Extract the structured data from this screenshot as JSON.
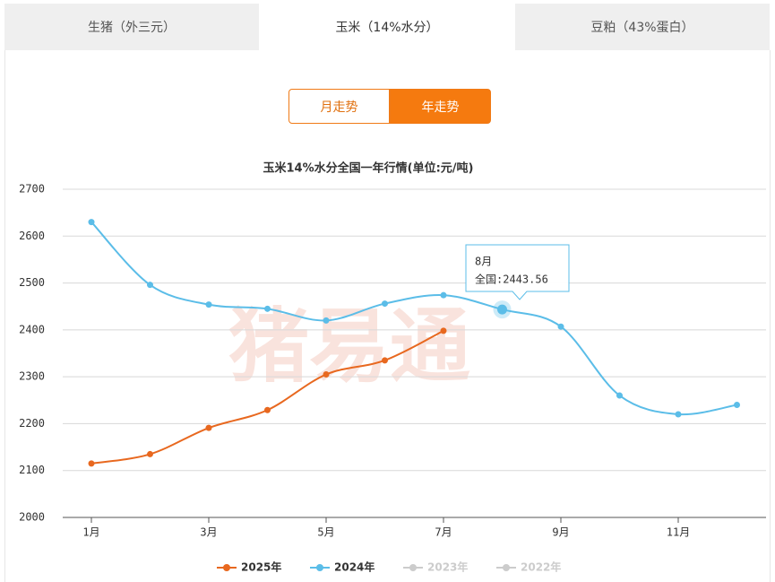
{
  "tabs": [
    "生猪（外三元）",
    "玉米（14%水分）",
    "豆粕（43%蛋白）"
  ],
  "buttons": [
    "月走势",
    "年走势"
  ],
  "watermark": "猪易通",
  "tooltip": {
    "title": "8月",
    "text": "全国:2443.56"
  },
  "chart_data": {
    "type": "line",
    "title": "玉米14%水分全国一年行情(单位:元/吨)",
    "categories": [
      "1月",
      null,
      "3月",
      null,
      "5月",
      null,
      "7月",
      null,
      "9月",
      null,
      "11月",
      null
    ],
    "series": [
      {
        "name": "2025年",
        "color": "#e8681f",
        "values": [
          2115,
          2135,
          2191,
          2229,
          2305,
          2335,
          2398,
          null,
          null,
          null,
          null,
          null
        ]
      },
      {
        "name": "2024年",
        "color": "#5bbde8",
        "values": [
          2630,
          2496,
          2454,
          2445,
          2420,
          2456,
          2474,
          2443.56,
          2407,
          2260,
          2220,
          2240
        ]
      },
      {
        "name": "2023年",
        "color": "#cccccc",
        "values": [
          null,
          null,
          null,
          null,
          null,
          null,
          null,
          null,
          null,
          null,
          null,
          null
        ]
      },
      {
        "name": "2022年",
        "color": "#cccccc",
        "values": [
          null,
          null,
          null,
          null,
          null,
          null,
          null,
          null,
          null,
          null,
          null,
          null
        ]
      }
    ],
    "ylim": [
      2000,
      2700
    ],
    "yticks": [
      2000,
      2100,
      2200,
      2300,
      2400,
      2500,
      2600,
      2700
    ],
    "grid": true,
    "legend": "bottom"
  }
}
